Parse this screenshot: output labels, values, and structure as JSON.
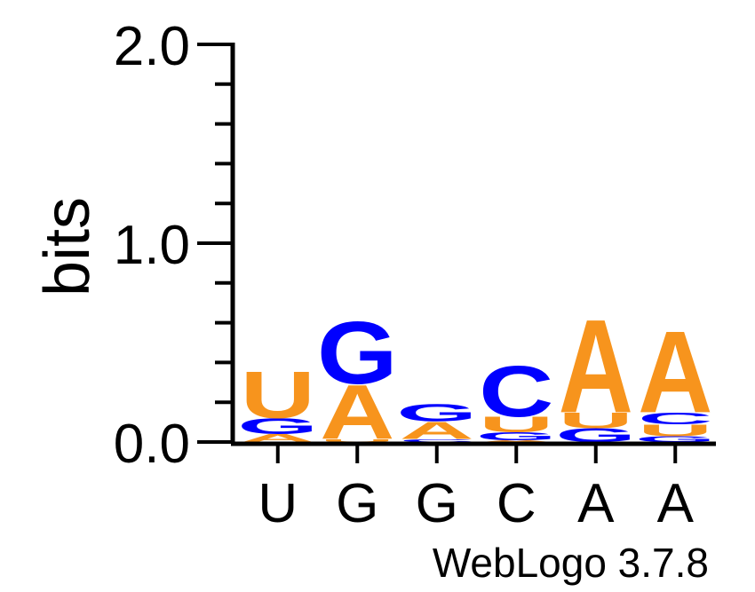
{
  "chart_data": {
    "type": "sequence_logo",
    "ylabel": "bits",
    "ylim": [
      0,
      2.0
    ],
    "yticks": [
      0.0,
      1.0,
      2.0
    ],
    "ytick_labels": [
      "0.0",
      "1.0",
      "2.0"
    ],
    "x_labels": [
      "U",
      "G",
      "G",
      "C",
      "A",
      "A"
    ],
    "footer": "WebLogo 3.7.8",
    "colors": {
      "A": "#f7941d",
      "U": "#f7941d",
      "G": "#0000ff",
      "C": "#0000ff"
    },
    "positions": [
      {
        "label": "U",
        "stack": [
          {
            "letter": "A",
            "bits": 0.04
          },
          {
            "letter": "G",
            "bits": 0.08
          },
          {
            "letter": "U",
            "bits": 0.24
          }
        ]
      },
      {
        "label": "G",
        "stack": [
          {
            "letter": "U",
            "bits": 0.015
          },
          {
            "letter": "A",
            "bits": 0.28
          },
          {
            "letter": "G",
            "bits": 0.32
          }
        ]
      },
      {
        "label": "G",
        "stack": [
          {
            "letter": "C",
            "bits": 0.015
          },
          {
            "letter": "A",
            "bits": 0.09
          },
          {
            "letter": "G",
            "bits": 0.09
          }
        ]
      },
      {
        "label": "C",
        "stack": [
          {
            "letter": "A",
            "bits": 0.01
          },
          {
            "letter": "G",
            "bits": 0.04
          },
          {
            "letter": "U",
            "bits": 0.08
          },
          {
            "letter": "C",
            "bits": 0.26
          }
        ]
      },
      {
        "label": "A",
        "stack": [
          {
            "letter": "G",
            "bits": 0.07
          },
          {
            "letter": "U",
            "bits": 0.08
          },
          {
            "letter": "A",
            "bits": 0.48
          }
        ]
      },
      {
        "label": "A",
        "stack": [
          {
            "letter": "G",
            "bits": 0.03
          },
          {
            "letter": "U",
            "bits": 0.06
          },
          {
            "letter": "C",
            "bits": 0.06
          },
          {
            "letter": "A",
            "bits": 0.42
          }
        ]
      }
    ]
  }
}
